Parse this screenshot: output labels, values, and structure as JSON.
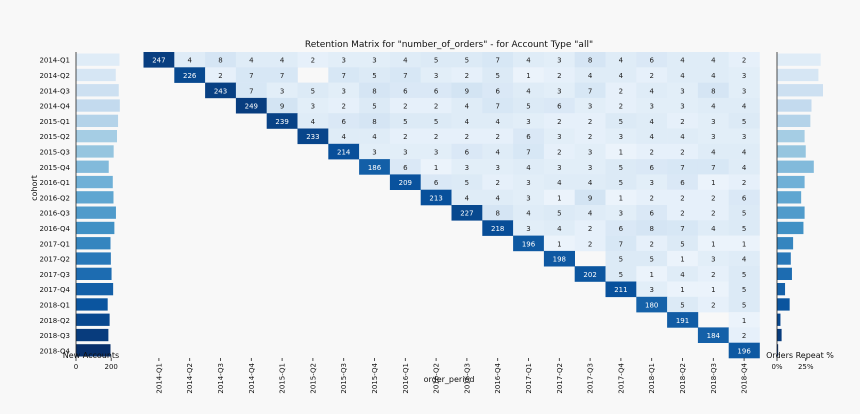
{
  "figure": {
    "title": "Retention Matrix for \"number_of_orders\" - for Account Type \"all\""
  },
  "chart_data": [
    {
      "type": "bar",
      "orientation": "horizontal",
      "name": "new-accounts",
      "xlabel": "New Accounts",
      "ylabel": "cohort",
      "xlim": [
        0,
        250
      ],
      "xticks": [
        "0",
        "200"
      ],
      "categories": [
        "2014-Q1",
        "2014-Q2",
        "2014-Q3",
        "2014-Q4",
        "2015-Q1",
        "2015-Q2",
        "2015-Q3",
        "2015-Q4",
        "2016-Q1",
        "2016-Q2",
        "2016-Q3",
        "2016-Q4",
        "2017-Q1",
        "2017-Q2",
        "2017-Q3",
        "2017-Q4",
        "2018-Q1",
        "2018-Q2",
        "2018-Q3",
        "2018-Q4"
      ],
      "values": [
        247,
        226,
        243,
        249,
        239,
        233,
        214,
        186,
        209,
        213,
        227,
        218,
        196,
        198,
        202,
        211,
        180,
        191,
        184,
        196
      ]
    },
    {
      "type": "heatmap",
      "name": "retention-matrix",
      "xlabel": "order_period",
      "ylabel": "",
      "colormap": "Blues",
      "rows": [
        "2014-Q1",
        "2014-Q2",
        "2014-Q3",
        "2014-Q4",
        "2015-Q1",
        "2015-Q2",
        "2015-Q3",
        "2015-Q4",
        "2016-Q1",
        "2016-Q2",
        "2016-Q3",
        "2016-Q4",
        "2017-Q1",
        "2017-Q2",
        "2017-Q3",
        "2017-Q4",
        "2018-Q1",
        "2018-Q2",
        "2018-Q3",
        "2018-Q4"
      ],
      "columns": [
        "2014-Q1",
        "2014-Q2",
        "2014-Q3",
        "2014-Q4",
        "2015-Q1",
        "2015-Q2",
        "2015-Q3",
        "2015-Q4",
        "2016-Q1",
        "2016-Q2",
        "2016-Q3",
        "2016-Q4",
        "2017-Q1",
        "2017-Q2",
        "2017-Q3",
        "2017-Q4",
        "2018-Q1",
        "2018-Q2",
        "2018-Q3",
        "2018-Q4"
      ],
      "values": [
        [
          247,
          4,
          8,
          4,
          4,
          2,
          3,
          3,
          4,
          5,
          5,
          7,
          4,
          3,
          8,
          4,
          6,
          4,
          4,
          2
        ],
        [
          null,
          226,
          2,
          7,
          7,
          null,
          7,
          5,
          7,
          3,
          2,
          5,
          1,
          2,
          4,
          4,
          2,
          4,
          4,
          3
        ],
        [
          null,
          null,
          243,
          7,
          3,
          5,
          3,
          8,
          6,
          6,
          9,
          6,
          4,
          3,
          7,
          2,
          4,
          3,
          8,
          3
        ],
        [
          null,
          null,
          null,
          249,
          9,
          3,
          2,
          5,
          2,
          2,
          4,
          7,
          5,
          6,
          3,
          2,
          3,
          3,
          4,
          4
        ],
        [
          null,
          null,
          null,
          null,
          239,
          4,
          6,
          8,
          5,
          5,
          4,
          4,
          3,
          2,
          2,
          5,
          4,
          2,
          3,
          5
        ],
        [
          null,
          null,
          null,
          null,
          null,
          233,
          4,
          4,
          2,
          2,
          2,
          2,
          6,
          3,
          2,
          3,
          4,
          4,
          3,
          3
        ],
        [
          null,
          null,
          null,
          null,
          null,
          null,
          214,
          3,
          3,
          3,
          6,
          4,
          7,
          2,
          3,
          1,
          2,
          2,
          4,
          4
        ],
        [
          null,
          null,
          null,
          null,
          null,
          null,
          null,
          186,
          6,
          1,
          3,
          3,
          4,
          3,
          3,
          5,
          6,
          7,
          7,
          4
        ],
        [
          null,
          null,
          null,
          null,
          null,
          null,
          null,
          null,
          209,
          6,
          5,
          2,
          3,
          4,
          4,
          5,
          3,
          6,
          1,
          2
        ],
        [
          null,
          null,
          null,
          null,
          null,
          null,
          null,
          null,
          null,
          213,
          4,
          4,
          3,
          1,
          9,
          1,
          2,
          2,
          2,
          6
        ],
        [
          null,
          null,
          null,
          null,
          null,
          null,
          null,
          null,
          null,
          null,
          227,
          8,
          4,
          5,
          4,
          3,
          6,
          2,
          2,
          5
        ],
        [
          null,
          null,
          null,
          null,
          null,
          null,
          null,
          null,
          null,
          null,
          null,
          218,
          3,
          4,
          2,
          6,
          8,
          7,
          4,
          5
        ],
        [
          null,
          null,
          null,
          null,
          null,
          null,
          null,
          null,
          null,
          null,
          null,
          null,
          196,
          1,
          2,
          7,
          2,
          5,
          1,
          1
        ],
        [
          null,
          null,
          null,
          null,
          null,
          null,
          null,
          null,
          null,
          null,
          null,
          null,
          null,
          198,
          null,
          5,
          5,
          1,
          3,
          4
        ],
        [
          null,
          null,
          null,
          null,
          null,
          null,
          null,
          null,
          null,
          null,
          null,
          null,
          null,
          null,
          202,
          5,
          1,
          4,
          2,
          5
        ],
        [
          null,
          null,
          null,
          null,
          null,
          null,
          null,
          null,
          null,
          null,
          null,
          null,
          null,
          null,
          null,
          211,
          3,
          1,
          1,
          5
        ],
        [
          null,
          null,
          null,
          null,
          null,
          null,
          null,
          null,
          null,
          null,
          null,
          null,
          null,
          null,
          null,
          null,
          180,
          5,
          2,
          5
        ],
        [
          null,
          null,
          null,
          null,
          null,
          null,
          null,
          null,
          null,
          null,
          null,
          null,
          null,
          null,
          null,
          null,
          null,
          191,
          null,
          1
        ],
        [
          null,
          null,
          null,
          null,
          null,
          null,
          null,
          null,
          null,
          null,
          null,
          null,
          null,
          null,
          null,
          null,
          null,
          null,
          184,
          2
        ],
        [
          null,
          null,
          null,
          null,
          null,
          null,
          null,
          null,
          null,
          null,
          null,
          null,
          null,
          null,
          null,
          null,
          null,
          null,
          null,
          196
        ]
      ]
    },
    {
      "type": "bar",
      "orientation": "horizontal",
      "name": "orders-repeat",
      "xlabel": "Orders Repeat %",
      "xlim": [
        0,
        40
      ],
      "xticks": [
        "0%",
        "25%"
      ],
      "categories": [
        "2014-Q1",
        "2014-Q2",
        "2014-Q3",
        "2014-Q4",
        "2015-Q1",
        "2015-Q2",
        "2015-Q3",
        "2015-Q4",
        "2016-Q1",
        "2016-Q2",
        "2016-Q3",
        "2016-Q4",
        "2017-Q1",
        "2017-Q2",
        "2017-Q3",
        "2017-Q4",
        "2018-Q1",
        "2018-Q2",
        "2018-Q3",
        "2018-Q4"
      ],
      "values": [
        38,
        36,
        40,
        30,
        29,
        24,
        25,
        32,
        24,
        21,
        24,
        23,
        14,
        12,
        13,
        7,
        11,
        3,
        4,
        1
      ]
    }
  ]
}
